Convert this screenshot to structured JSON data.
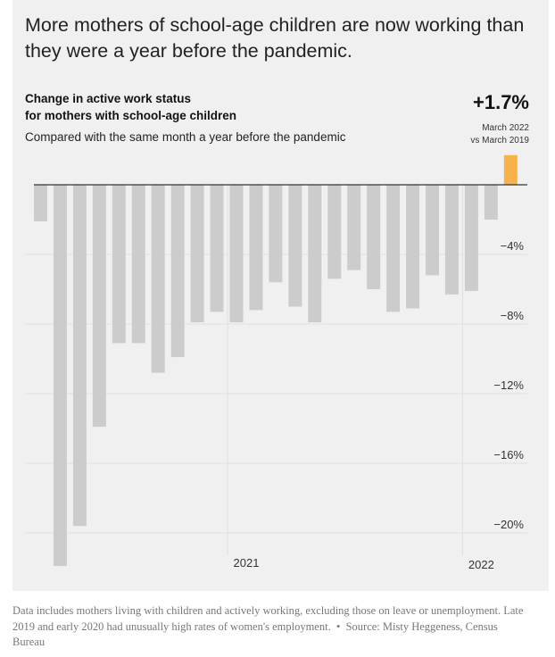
{
  "headline": "More mothers of school-age children are now working than they were a year before the pandemic.",
  "chart_data": {
    "type": "bar",
    "title": "Change in active work status for mothers with school-age children",
    "title_lines": [
      "Change in active work status",
      "for mothers with school-age children"
    ],
    "subtitle": "Compared with the same month a year before the pandemic",
    "ylabel": "",
    "xlabel": "",
    "ylim": [
      -22,
      2
    ],
    "yticks": [
      -4,
      -8,
      -12,
      -16,
      -20
    ],
    "ytick_labels": [
      "−4%",
      "−8%",
      "−12%",
      "−16%",
      "−20%"
    ],
    "xtick_labels": [
      {
        "label": "2021",
        "bar_index": 10
      },
      {
        "label": "2022",
        "bar_index": 22
      }
    ],
    "values": [
      -2.1,
      -21.9,
      -19.6,
      -13.9,
      -9.1,
      -9.1,
      -10.8,
      -9.9,
      -7.9,
      -7.3,
      -7.9,
      -7.2,
      -5.6,
      -7.0,
      -7.9,
      -5.4,
      -4.9,
      -6.0,
      -7.3,
      -7.1,
      -5.2,
      -6.3,
      -6.1,
      -2.0,
      1.7
    ],
    "colors": {
      "default": "#cccccc",
      "highlight": "#f9b24a"
    },
    "highlight_index": 24,
    "callout": {
      "value_label": "+1.7%",
      "note_lines": [
        "March 2022",
        "vs March 2019"
      ]
    }
  },
  "footnote": "Data includes mothers living with children and actively working, excluding those on leave or unemployment. Late 2019 and early 2020 had unusually high rates of women's employment.",
  "source": "Source: Misty Heggeness, Census Bureau"
}
